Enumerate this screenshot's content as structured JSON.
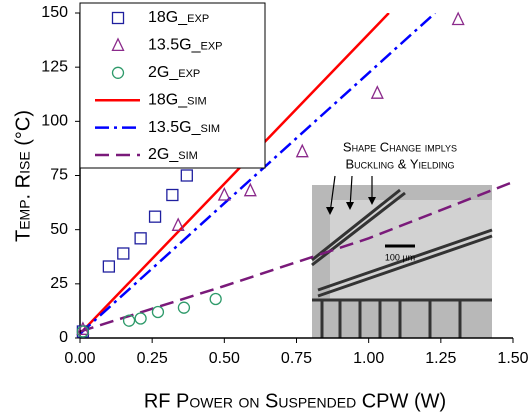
{
  "chart_data": {
    "type": "line",
    "xlabel": "RF Power on Suspended CPW   (W)",
    "ylabel": "Temp. Rise (°C)",
    "xlim": [
      0,
      1.5
    ],
    "ylim": [
      0,
      150
    ],
    "xticks": [
      {
        "value": 0,
        "label": "0.00"
      },
      {
        "value": 0.25,
        "label": "0.25"
      },
      {
        "value": 0.5,
        "label": "0.50"
      },
      {
        "value": 0.75,
        "label": "0.75"
      },
      {
        "value": 1,
        "label": "1.00"
      },
      {
        "value": 1.25,
        "label": "1.25"
      },
      {
        "value": 1.5,
        "label": "1.50"
      }
    ],
    "yticks": [
      0,
      25,
      50,
      75,
      100,
      125,
      150
    ],
    "series": [
      {
        "name": "18G_exp",
        "color": "#1f1f9f",
        "marker": "square",
        "x": [
          0.01,
          0.1,
          0.15,
          0.21,
          0.26,
          0.32,
          0.37
        ],
        "values": [
          3,
          33,
          39,
          46,
          56,
          66,
          75
        ]
      },
      {
        "name": "13.5G_exp",
        "color": "#8b2a8b",
        "marker": "triangle",
        "x": [
          0.01,
          0.34,
          0.5,
          0.59,
          0.77,
          1.03,
          1.31
        ],
        "values": [
          4,
          52,
          66,
          68,
          86,
          113,
          147
        ]
      },
      {
        "name": "2G_exp",
        "color": "#2e9a6a",
        "marker": "circle",
        "x": [
          0.01,
          0.17,
          0.21,
          0.27,
          0.36,
          0.47
        ],
        "values": [
          3,
          8,
          9,
          12,
          14,
          18
        ]
      },
      {
        "name": "18G_sim",
        "color": "#ff0000",
        "dash": "",
        "x": [
          0,
          1.07
        ],
        "values": [
          2,
          150
        ]
      },
      {
        "name": "13.5G_sim",
        "color": "#0000ff",
        "dash": "14 5 3 5",
        "x": [
          0,
          1.23
        ],
        "values": [
          2,
          150
        ]
      },
      {
        "name": "2G_sim",
        "color": "#7a1a7a",
        "dash": "14 7",
        "x": [
          0,
          0.5,
          1.0,
          1.5
        ],
        "values": [
          3,
          24,
          46,
          72
        ]
      }
    ],
    "annotation": [
      "Shape Change implys",
      "Buckling & Yielding"
    ],
    "inset_label": "100 µm"
  }
}
